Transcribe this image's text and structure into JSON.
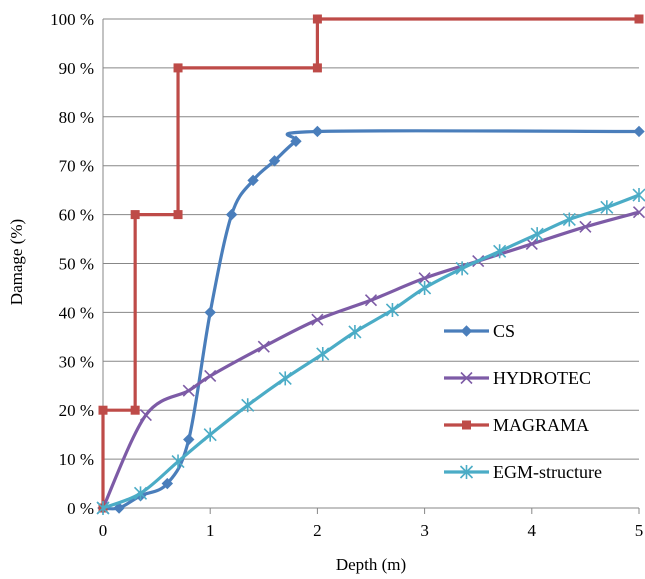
{
  "chart_data": {
    "type": "line",
    "xlabel": "Depth (m)",
    "ylabel": "Damage (%)",
    "xlim": [
      0,
      5
    ],
    "ylim": [
      0,
      100
    ],
    "x_ticks": [
      "0",
      "1",
      "2",
      "3",
      "4",
      "5"
    ],
    "y_ticks": [
      "0 %",
      "10 %",
      "20 %",
      "30 %",
      "40 %",
      "50 %",
      "60 %",
      "70 %",
      "80 %",
      "90 %",
      "100 %"
    ],
    "grid": "horizontal",
    "legend_position": "right",
    "series": [
      {
        "name": "CS",
        "color": "#4A7EBB",
        "marker": "diamond",
        "smooth": true,
        "x": [
          0,
          0.15,
          0.35,
          0.6,
          0.8,
          1.0,
          1.2,
          1.4,
          1.6,
          1.8,
          2.0,
          5.0
        ],
        "y": [
          0,
          0,
          2.5,
          5,
          14,
          40,
          60,
          67,
          71,
          75,
          77,
          77
        ]
      },
      {
        "name": "HYDROTEC",
        "color": "#7D5BA6",
        "marker": "x",
        "smooth": true,
        "x": [
          0,
          0.4,
          0.8,
          1.0,
          1.5,
          2.0,
          2.5,
          3.0,
          3.5,
          4.0,
          4.5,
          5.0
        ],
        "y": [
          0,
          19,
          24,
          27,
          33,
          38.5,
          42.5,
          47,
          50.5,
          54,
          57.5,
          60.5
        ]
      },
      {
        "name": "MAGRAMA",
        "color": "#BE4B48",
        "marker": "square",
        "smooth": false,
        "x": [
          0,
          0,
          0.3,
          0.3,
          0.7,
          0.7,
          2.0,
          2.0,
          5.0
        ],
        "y": [
          0,
          20,
          20,
          60,
          60,
          90,
          90,
          100,
          100
        ]
      },
      {
        "name": "EGM-structure",
        "color": "#4BACC6",
        "marker": "asterisk",
        "smooth": true,
        "x": [
          0,
          0.35,
          0.7,
          1.0,
          1.35,
          1.7,
          2.05,
          2.35,
          2.7,
          3.0,
          3.35,
          3.7,
          4.05,
          4.35,
          4.7,
          5.0
        ],
        "y": [
          0,
          3,
          9.5,
          15,
          21,
          26.5,
          31.5,
          36,
          40.5,
          45,
          49,
          52.5,
          56,
          59,
          61.5,
          64
        ]
      }
    ]
  }
}
